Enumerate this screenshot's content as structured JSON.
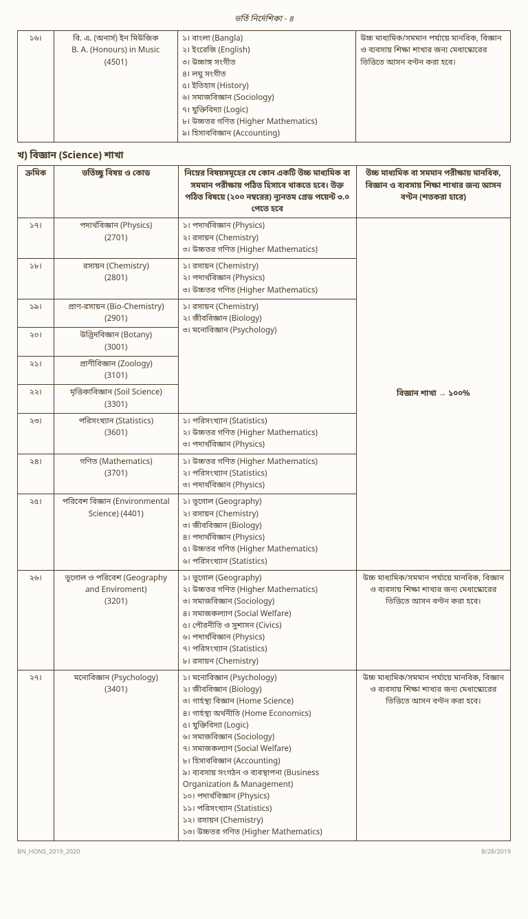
{
  "page_header": "ভর্তি নির্দেশিকা - ৪",
  "table1": {
    "row": {
      "serial": "১৬।",
      "subject_bn": "বি. এ. (অনার্স) ইন মিউজিক",
      "subject_en": "B. A. (Honours) in Music",
      "code": "(4501)",
      "criteria": [
        "১। বাংলা (Bangla)",
        "২। ইংরেজি (English)",
        "৩। উচ্চাঙ্গ সংগীত",
        "৪। লঘু সংগীত",
        "৫। ইতিহাস (History)",
        "৬। সমাজবিজ্ঞান (Sociology)",
        "৭। যুক্তিবিদ্যা (Logic)",
        "৮। উচ্চতর গণিত (Higher Mathematics)",
        "৯। হিসাববিজ্ঞান (Accounting)"
      ],
      "seat": "উচ্চ মাধ্যমিক/সমমান পর্যায়ে মানবিক, বিজ্ঞান ও ব্যবসায় শিক্ষা শাখার জন্য মেধাস্কোরের ভিত্তিতে আসন বণ্টন করা হবে।"
    }
  },
  "section_title": "খ) বিজ্ঞান (Science) শাখা",
  "table2": {
    "headers": {
      "h1": "ক্রমিক",
      "h2": "ভর্তিচ্ছু বিষয় ও কোড",
      "h3": "নিম্নের বিষয়সমূহের যে কোন একটি উচ্চ মাধ্যমিক বা সমমান পরীক্ষায় পঠিত হিসাবে থাকতে হবে। উক্ত পঠিত বিষয়ে (২০০ নম্বরের) ন্যূনতম গ্রেড পয়েন্ট ৩.০ পেতে হবে",
      "h4": "উচ্চ মাধ্যমিক বা সমমান পরীক্ষায় মানবিক, বিজ্ঞান ও ব্যবসায় শিক্ষা শাখার জন্য আসন বণ্টন (শতকরা হারে)"
    },
    "rows": [
      {
        "serial": "১৭।",
        "subject": "পদার্থবিজ্ঞান (Physics)",
        "code": "(2701)",
        "criteria": [
          "১। পদার্থবিজ্ঞান (Physics)",
          "২। রসায়ন (Chemistry)",
          "৩। উচ্চতর গণিত (Higher Mathematics)"
        ]
      },
      {
        "serial": "১৮।",
        "subject": "রসায়ন (Chemistry)",
        "code": "(2801)",
        "criteria": [
          "১। রসায়ন (Chemistry)",
          "২। পদার্থবিজ্ঞান (Physics)",
          "৩। উচ্চতর গণিত (Higher Mathematics)"
        ]
      },
      {
        "serial": "১৯।",
        "subject": "প্রাণ-রসায়ন (Bio-Chemistry)",
        "code": "(2901)",
        "criteria": [
          "১। রসায়ন (Chemistry)",
          "২। জীববিজ্ঞান (Biology)",
          "৩। মনোবিজ্ঞান (Psychology)"
        ]
      },
      {
        "serial": "২০।",
        "subject": "উদ্ভিদবিজ্ঞান (Botany)",
        "code": "(3001)"
      },
      {
        "serial": "২১।",
        "subject": "প্রাণীবিজ্ঞান (Zoology)",
        "code": "(3101)"
      },
      {
        "serial": "২২।",
        "subject": "মৃত্তিকাবিজ্ঞান (Soil Science)",
        "code": "(3301)"
      },
      {
        "serial": "২৩।",
        "subject": "পরিসংখ্যান (Statistics)",
        "code": "(3601)",
        "criteria": [
          "১। পরিসংখ্যান (Statistics)",
          "২। উচ্চতর গণিত (Higher Mathematics)",
          "৩। পদার্থবিজ্ঞান (Physics)"
        ]
      },
      {
        "serial": "২৪।",
        "subject": "গণিত (Mathematics)",
        "code": "(3701)",
        "criteria": [
          "১। উচ্চতর গণিত (Higher Mathematics)",
          "২। পরিসংখ্যান (Statistics)",
          "৩। পদার্থবিজ্ঞান (Physics)"
        ]
      },
      {
        "serial": "২৫।",
        "subject": "পরিবেশ বিজ্ঞান (Environmental Science) (4401)",
        "code": "",
        "criteria": [
          "১। ভূগোল (Geography)",
          "২। রসায়ন (Chemistry)",
          "৩। জীববিজ্ঞান (Biology)",
          "৪। পদার্থবিজ্ঞান (Physics)",
          "৫। উচ্চতর গণিত (Higher Mathematics)",
          "৬। পরিসংখ্যান (Statistics)"
        ]
      },
      {
        "serial": "২৬।",
        "subject": "ভূগোল ও পরিবেশ (Geography and Enviroment)",
        "code": "(3201)",
        "criteria": [
          "১। ভূগোল (Geography)",
          "২। উচ্চতর গণিত (Higher Mathematics)",
          "৩। সমাজবিজ্ঞান (Sociology)",
          "৪। সমাজকল্যাণ (Social Welfare)",
          "৫। পৌরনীতি ও সুশাসন  (Civics)",
          "৬। পদার্থবিজ্ঞান (Physics)",
          "৭। পরিসংখ্যান (Statistics)",
          "৮। রসায়ন (Chemistry)"
        ],
        "seat": "উচ্চ মাধ্যমিক/সমমান পর্যায়ে মানবিক, বিজ্ঞান ও ব্যবসায় শিক্ষা শাখার জন্য মেধাস্কোরের ভিত্তিতে আসন বণ্টন করা হবে।"
      },
      {
        "serial": "২৭।",
        "subject": "মনোবিজ্ঞান (Psychology)",
        "code": "(3401)",
        "criteria": [
          "১। মনোবিজ্ঞান (Psychology)",
          "২। জীববিজ্ঞান (Biology)",
          "৩। গার্হস্থ্য বিজ্ঞান (Home Science)",
          "৪। গার্হস্থ্য অর্থনীতি (Home Economics)",
          "৫। যুক্তিবিদ্যা (Logic)",
          "৬। সমাজবিজ্ঞান (Sociology)",
          "৭। সমাজকল্যাণ (Social Welfare)",
          "৮। হিসাববিজ্ঞান (Accounting)",
          "৯। ব্যবসায় সংগঠন ও ব্যবস্থাপনা  (Business Organization & Management)",
          "১০। পদার্থবিজ্ঞান (Physics)",
          "১১। পরিসংখ্যান (Statistics)",
          "১২। রসায়ন (Chemistry)",
          "১৩। উচ্চতর গণিত (Higher Mathematics)"
        ],
        "seat": "উচ্চ মাধ্যমিক/সমমান পর্যায়ে মানবিক, বিজ্ঞান ও ব্যবসায় শিক্ষা শাখার জন্য মেধাস্কোরের ভিত্তিতে আসন বণ্টন করা হবে।"
      }
    ],
    "seat_science": "বিজ্ঞান শাখা → ১০০%"
  },
  "footer_left": "BN_HONS_2019_2020",
  "footer_right": "8/28/2019"
}
